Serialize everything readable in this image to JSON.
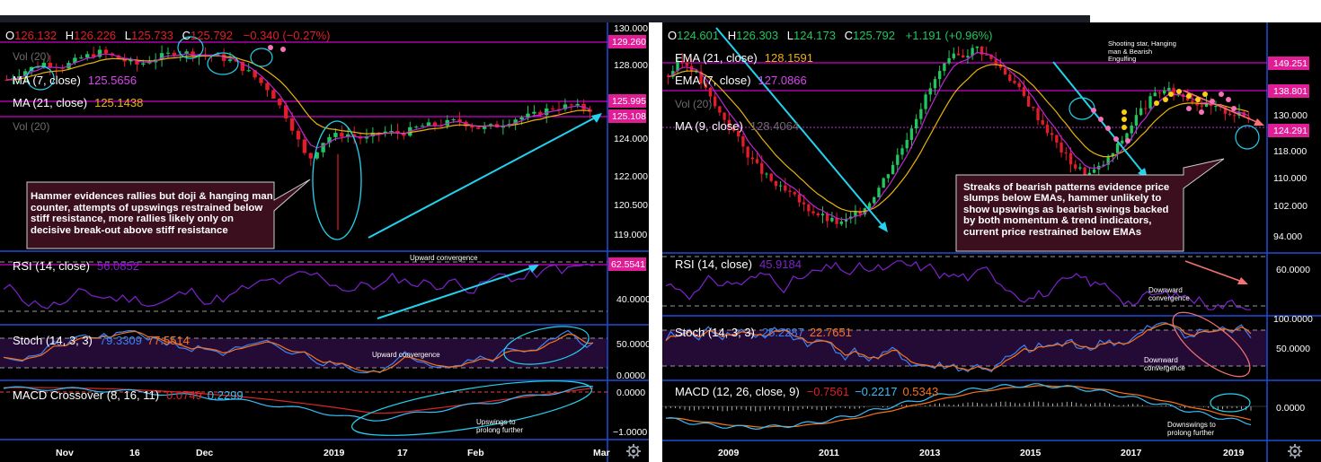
{
  "colors": {
    "bull": "#22c55e",
    "bear": "#e11d2a",
    "ma_fast": "#c026d3",
    "ma_slow": "#eab308",
    "resistance": "#ff00ff",
    "annotation": "#22d3ee",
    "rsi": "#7e22ce",
    "stoch_k": "#3b82f6",
    "stoch_d": "#f97316",
    "macd": "#38bdf8",
    "signal": "#dc2626",
    "callout_bg": "#3b0f1e",
    "axis_text": "#ffffff"
  },
  "icons": [
    "gear-icon"
  ],
  "left": {
    "ohlc": {
      "o_label": "O",
      "o": "126.132",
      "h_label": "H",
      "h": "126.226",
      "l_label": "L",
      "l": "125.733",
      "c_label": "C",
      "c": "125.792",
      "chg": "−0.340 (−0.27%)"
    },
    "vol_top": "Vol (20)",
    "ma7_label": "MA (7, close)",
    "ma7_value": "125.5656",
    "ma21_label": "MA (21, close)",
    "ma21_value": "125.1438",
    "vol_label": "Vol (20)",
    "callout": "Hammer evidences rallies but doji & hanging man counter, attempts of upswings restrained below stiff resistance, more rallies likely only on decisive break-out above stiff resistance",
    "price_ticks": [
      "130.000",
      "128.000",
      "124.000",
      "122.000",
      "120.500",
      "119.000"
    ],
    "price_tags": {
      "resistance": "129.260",
      "current": "125.995",
      "ma": "125.108"
    },
    "rsi_label": "RSI (14, close)",
    "rsi_value": "56.0852",
    "rsi_tag": "62.5541",
    "rsi_tick": "40.0000",
    "rsi_note": "Upward convergence",
    "stoch_label": "Stoch (14, 3, 3)",
    "stoch_k": "79.3309",
    "stoch_d": "77.5514",
    "stoch_ticks": [
      "50.0000",
      "0.0000"
    ],
    "stoch_note": "Upward convergence",
    "macd_label": "MACD Crossover (8, 16, 11)",
    "macd_v1": "0.0749",
    "macd_v2": "0.2299",
    "macd_ticks": [
      "0.0000",
      "−1.0000"
    ],
    "macd_note": "Upswings to prolong further",
    "x_ticks": [
      "Nov",
      "16",
      "Dec",
      "2019",
      "17",
      "Feb",
      "Mar"
    ]
  },
  "right": {
    "ohlc": {
      "o_label": "O",
      "o": "124.601",
      "h_label": "H",
      "h": "126.303",
      "l_label": "L",
      "l": "124.173",
      "c_label": "C",
      "c": "125.792",
      "chg": "+1.191 (+0.96%)"
    },
    "ema21_label": "EMA (21, close)",
    "ema21_value": "128.1591",
    "ema7_label": "EMA (7, close)",
    "ema7_value": "127.0866",
    "vol_label": "Vol (20)",
    "ma9_label": "MA (9, close)",
    "ma9_value": "128.4064",
    "pattern_note": "Shooting star, Hanging man & Bearish Engulfing",
    "callout": "Streaks of bearish patterns evidence price slumps below EMAs, hammer unlikely to show upswings as bearish swings backed by both momentum & trend indicators, current price restrained below EMAs",
    "price_ticks": [
      "130.000",
      "118.000",
      "110.000",
      "102.000",
      "94.000"
    ],
    "price_tags": {
      "r1": "149.251",
      "r2": "138.801",
      "current": "124.291"
    },
    "rsi_label": "RSI (14, close)",
    "rsi_value": "45.9184",
    "rsi_tick": "60.0000",
    "rsi_note": "Downward convergence",
    "stoch_label": "Stoch (14, 3, 3)",
    "stoch_k": "25.2287",
    "stoch_d": "22.7651",
    "stoch_ticks": [
      "100.0000",
      "50.0000"
    ],
    "stoch_note": "Downward convergence",
    "macd_label": "MACD (12, 26, close, 9)",
    "macd_v1": "−0.7561",
    "macd_v2": "−0.2217",
    "macd_v3": "0.5343",
    "macd_tick": "0.0000",
    "macd_note": "Downswings to prolong further",
    "x_ticks": [
      "2009",
      "2011",
      "2013",
      "2015",
      "2017",
      "2019"
    ]
  },
  "chart_data": [
    {
      "type": "candlestick",
      "title": "",
      "timeframe_note": "daily",
      "x": [
        "Nov",
        "16",
        "Dec",
        "2019",
        "17",
        "Feb",
        "Mar"
      ],
      "ylim": [
        118.5,
        130.0
      ],
      "close_path": [
        127.4,
        127.9,
        128.3,
        128.1,
        128.6,
        128.9,
        128.5,
        128.2,
        128.6,
        128.9,
        128.8,
        128.7,
        128.4,
        127.7,
        126.8,
        125.2,
        123.0,
        124.3,
        124.5,
        124.2,
        124.6,
        124.5,
        124.9,
        125.0,
        125.2,
        124.8,
        124.9,
        125.3,
        125.5,
        125.9,
        126.0,
        125.8
      ],
      "lows_noted": {
        "hammer_low": 119.3
      },
      "series": [
        {
          "name": "MA (7, close)",
          "last": 125.5656
        },
        {
          "name": "MA (21, close)",
          "last": 125.1438
        }
      ],
      "levels": [
        129.26,
        125.995,
        125.108
      ],
      "rsi": {
        "last": 56.0852,
        "level": 62.5541
      },
      "stoch": {
        "k": 79.3309,
        "d": 77.5514
      },
      "macd": {
        "v1": 0.0749,
        "v2": 0.2299
      }
    },
    {
      "type": "candlestick",
      "title": "",
      "timeframe_note": "monthly",
      "x": [
        "2009",
        "2011",
        "2013",
        "2015",
        "2017",
        "2019"
      ],
      "ylim": [
        90.0,
        152.0
      ],
      "close_path": [
        138,
        142,
        140,
        134,
        128,
        124,
        118,
        113,
        109,
        106,
        104,
        101,
        99,
        97,
        96,
        98,
        101,
        106,
        112,
        118,
        126,
        133,
        139,
        143,
        144,
        146,
        143,
        140,
        136,
        131,
        126,
        121,
        116,
        112,
        110,
        112,
        116,
        121,
        127,
        131,
        134,
        133,
        132,
        130,
        129,
        128,
        127,
        125.8
      ],
      "series": [
        {
          "name": "EMA (21, close)",
          "last": 128.1591
        },
        {
          "name": "EMA (7, close)",
          "last": 127.0866
        },
        {
          "name": "MA (9, close)",
          "last": 128.4064
        }
      ],
      "levels": [
        149.251,
        138.801,
        124.291
      ],
      "rsi": {
        "last": 45.9184
      },
      "stoch": {
        "k": 25.2287,
        "d": 22.7651
      },
      "macd": {
        "v1": -0.7561,
        "v2": -0.2217,
        "v3": 0.5343
      }
    }
  ]
}
